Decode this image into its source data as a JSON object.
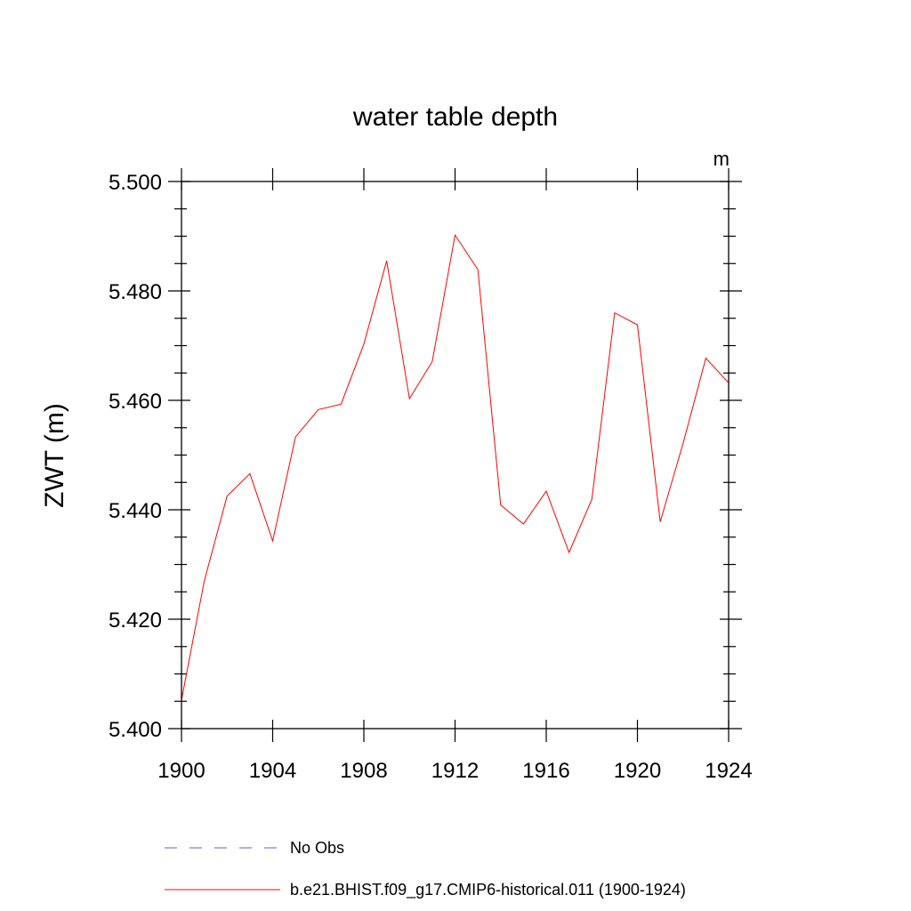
{
  "chart_data": {
    "type": "line",
    "title": "water table depth",
    "units": "m",
    "ylabel": "ZWT  (m)",
    "xlabel": "",
    "xlim": [
      1900,
      1924
    ],
    "ylim": [
      5.4,
      5.5
    ],
    "xticks": [
      1900,
      1904,
      1908,
      1912,
      1916,
      1920,
      1924
    ],
    "xtick_labels": [
      "1900",
      "1904",
      "1908",
      "1912",
      "1916",
      "1920",
      "1924"
    ],
    "yticks": [
      5.4,
      5.42,
      5.44,
      5.46,
      5.48,
      5.5
    ],
    "ytick_labels": [
      "5.400",
      "5.420",
      "5.440",
      "5.460",
      "5.480",
      "5.500"
    ],
    "grid": false,
    "legend_position": "bottom",
    "x": [
      1900,
      1901,
      1902,
      1903,
      1904,
      1905,
      1906,
      1907,
      1908,
      1909,
      1910,
      1911,
      1912,
      1913,
      1914,
      1915,
      1916,
      1917,
      1918,
      1919,
      1920,
      1921,
      1922,
      1923,
      1924
    ],
    "series": [
      {
        "name": "b.e21.BHIST.f09_g17.CMIP6-historical.011 (1900-1924)",
        "color": "#ff0000",
        "style": "solid",
        "values": [
          5.4052,
          5.427,
          5.4425,
          5.4466,
          5.4343,
          5.4533,
          5.4583,
          5.4593,
          5.4703,
          5.4855,
          5.4603,
          5.4671,
          5.4902,
          5.4839,
          5.4409,
          5.4374,
          5.4434,
          5.4322,
          5.4419,
          5.476,
          5.4738,
          5.4378,
          5.4521,
          5.4677,
          5.4632
        ]
      }
    ],
    "legend": [
      {
        "label": "No Obs",
        "color": "#6a5acd",
        "style": "dashed"
      },
      {
        "label": "b.e21.BHIST.f09_g17.CMIP6-historical.011 (1900-1924)",
        "color": "#ff0000",
        "style": "solid"
      }
    ]
  }
}
